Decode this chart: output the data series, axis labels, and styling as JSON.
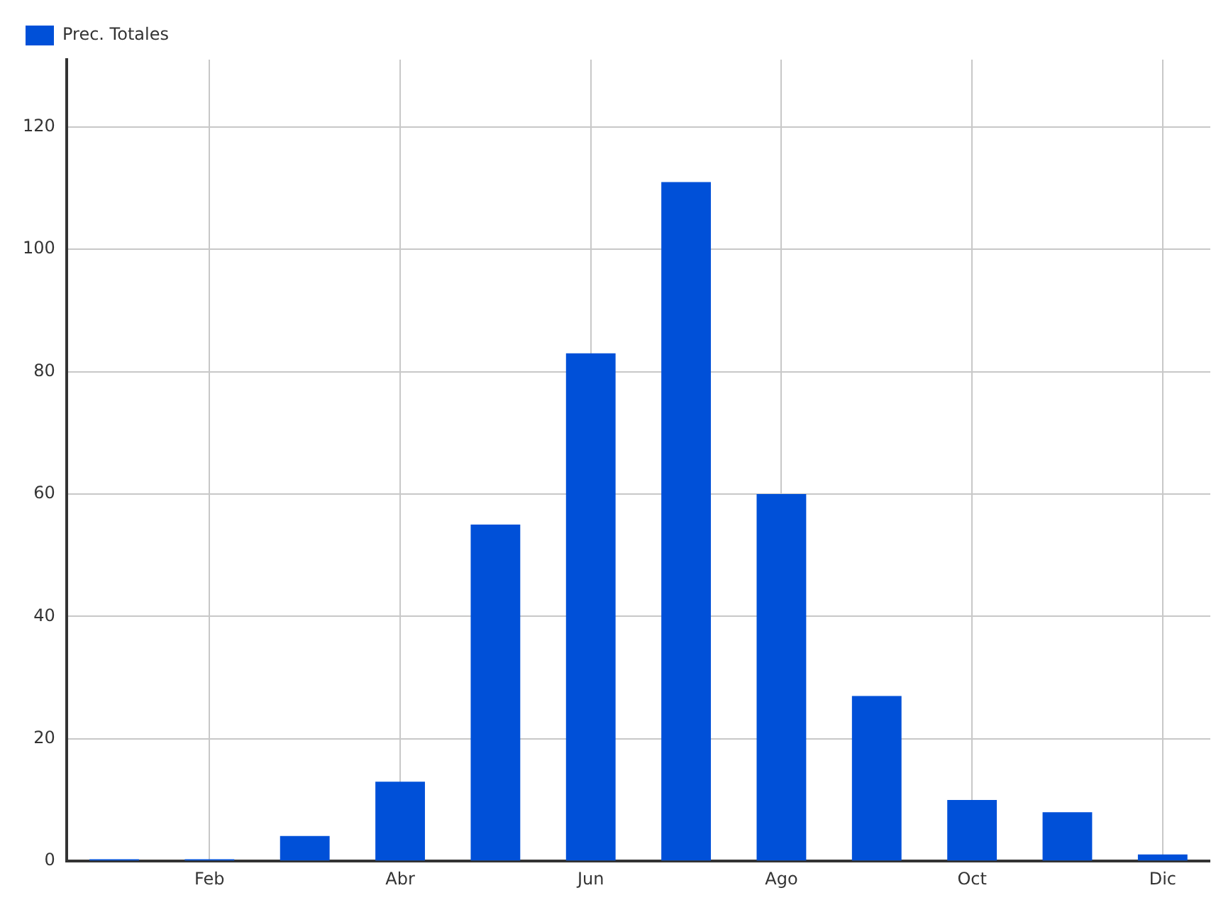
{
  "chart_data": {
    "type": "bar",
    "categories": [
      null,
      "Feb",
      null,
      "Abr",
      null,
      "Jun",
      null,
      "Ago",
      null,
      "Oct",
      null,
      "Dic"
    ],
    "series": [
      {
        "name": "Prec. Totales",
        "color": "#0050d8",
        "values": [
          0.3,
          0.3,
          4.1,
          13,
          55,
          83,
          111,
          60,
          27,
          10,
          8,
          1.1
        ]
      }
    ],
    "ylim": [
      0,
      131
    ],
    "yticks": [
      0,
      20,
      40,
      60,
      80,
      100,
      120
    ],
    "grid": true,
    "legend": "top left"
  }
}
